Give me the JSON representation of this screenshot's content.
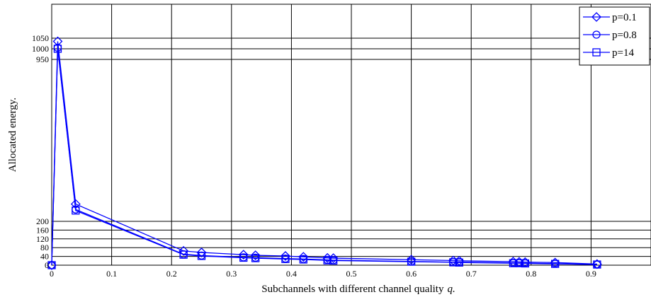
{
  "chart_data": {
    "type": "line",
    "title": "",
    "xlabel": "Subchannels with different channel quality",
    "xlabel_var": "q.",
    "ylabel": "Allocated energy.",
    "xlim": [
      0,
      1
    ],
    "x_ticks": [
      0,
      0.1,
      0.2,
      0.3,
      0.4,
      0.5,
      0.6,
      0.7,
      0.8,
      0.9
    ],
    "x_tick_labels": [
      "0",
      "0.1",
      "0.2",
      "0.3",
      "0.4",
      "0.5",
      "0.6",
      "0.7",
      "0.8",
      "0.9"
    ],
    "y_ticks": [
      0,
      40,
      80,
      120,
      160,
      200,
      950,
      1000,
      1050
    ],
    "y_tick_labels": [
      "0",
      "40",
      "80",
      "120",
      "160",
      "200",
      "950",
      "1000",
      "1050"
    ],
    "grid": true,
    "legend_position": "top-right",
    "series": [
      {
        "name": "p=0.1",
        "marker": "diamond",
        "x": [
          0,
          0.01,
          0.04,
          0.22,
          0.25,
          0.32,
          0.34,
          0.39,
          0.42,
          0.46,
          0.47,
          0.6,
          0.67,
          0.68,
          0.77,
          0.78,
          0.79,
          0.84,
          0.91
        ],
        "y": [
          0,
          1035,
          280,
          65,
          58,
          48,
          45,
          42,
          38,
          33,
          32,
          25,
          21,
          20,
          16,
          15,
          14,
          12,
          5
        ]
      },
      {
        "name": "p=0.8",
        "marker": "circle",
        "x": [
          0,
          0.01,
          0.04,
          0.22,
          0.25,
          0.32,
          0.34,
          0.39,
          0.42,
          0.46,
          0.47,
          0.6,
          0.67,
          0.68,
          0.77,
          0.78,
          0.79,
          0.84,
          0.91
        ],
        "y": [
          0,
          1005,
          255,
          50,
          44,
          36,
          34,
          30,
          28,
          24,
          23,
          17,
          14,
          14,
          10,
          10,
          9,
          7,
          3
        ]
      },
      {
        "name": "p=14",
        "marker": "square",
        "x": [
          0,
          0.01,
          0.04,
          0.22,
          0.25,
          0.32,
          0.34,
          0.39,
          0.42,
          0.46,
          0.47,
          0.6,
          0.67,
          0.68,
          0.77,
          0.78,
          0.79,
          0.84,
          0.91
        ],
        "y": [
          0,
          1000,
          250,
          48,
          42,
          34,
          32,
          28,
          26,
          22,
          21,
          16,
          13,
          12,
          9,
          9,
          8,
          6,
          3
        ]
      }
    ]
  }
}
